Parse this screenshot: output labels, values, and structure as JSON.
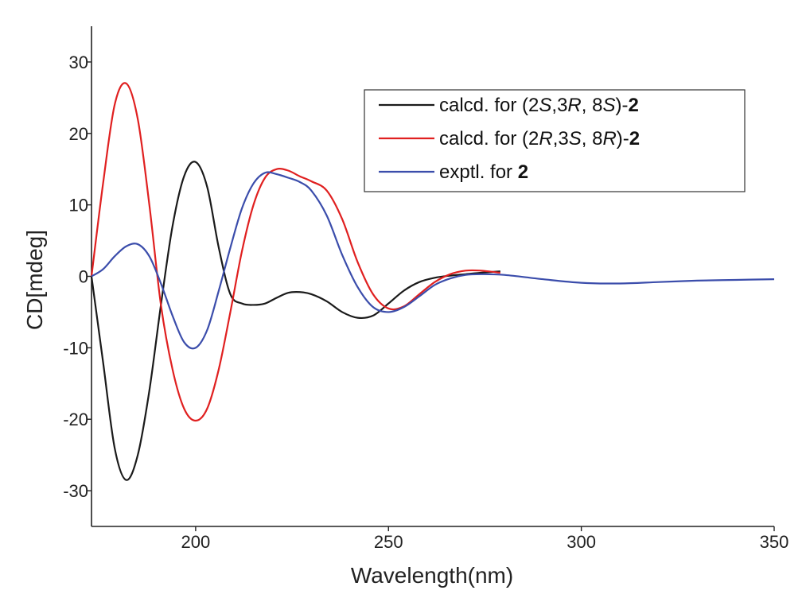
{
  "chart_data": {
    "type": "line",
    "xlabel": "Wavelength(nm)",
    "ylabel": "CD[mdeg]",
    "xlim": [
      173,
      350
    ],
    "ylim": [
      -35,
      35
    ],
    "xticks": [
      200,
      250,
      300,
      350
    ],
    "yticks": [
      30,
      20,
      10,
      0,
      -10,
      -20,
      -30
    ],
    "grid": false,
    "legend_position": "top-right",
    "series": [
      {
        "name": "calcd. for (2S,3R, 8S)-2",
        "legend": [
          {
            "t": "calcd. for (2",
            "s": ""
          },
          {
            "t": "S",
            "s": "ital"
          },
          {
            "t": ",3",
            "s": ""
          },
          {
            "t": "R",
            "s": "ital"
          },
          {
            "t": ", 8",
            "s": ""
          },
          {
            "t": "S",
            "s": "ital"
          },
          {
            "t": ")-",
            "s": ""
          },
          {
            "t": "2",
            "s": "bold"
          }
        ],
        "color": "#1a1a1a",
        "x": [
          173,
          176,
          179,
          182,
          185,
          188,
          191,
          194,
          197,
          200,
          203,
          206,
          209,
          212,
          215,
          218,
          221,
          224,
          227,
          230,
          234,
          238,
          242,
          246,
          250,
          254,
          258,
          262,
          266,
          270,
          274,
          279
        ],
        "y": [
          0,
          -12,
          -24,
          -28.5,
          -25,
          -16,
          -4,
          7,
          14,
          16,
          12.5,
          4,
          -2.5,
          -3.8,
          -4,
          -3.8,
          -3,
          -2.3,
          -2.2,
          -2.5,
          -3.5,
          -5,
          -5.8,
          -5.5,
          -3.8,
          -2,
          -0.8,
          -0.2,
          0.1,
          0.3,
          0.5,
          0.7
        ]
      },
      {
        "name": "calcd. for (2R,3S, 8R)-2",
        "legend": [
          {
            "t": "calcd. for (2",
            "s": ""
          },
          {
            "t": "R",
            "s": "ital"
          },
          {
            "t": ",3",
            "s": ""
          },
          {
            "t": "S",
            "s": "ital"
          },
          {
            "t": ", 8",
            "s": ""
          },
          {
            "t": "R",
            "s": "ital"
          },
          {
            "t": ")-",
            "s": ""
          },
          {
            "t": "2",
            "s": "bold"
          }
        ],
        "color": "#e02020",
        "x": [
          173,
          176,
          179,
          182,
          185,
          188,
          191,
          194,
          197,
          200,
          203,
          206,
          209,
          212,
          215,
          218,
          221,
          224,
          227,
          230,
          234,
          238,
          242,
          246,
          250,
          254,
          258,
          262,
          266,
          270,
          274,
          279
        ],
        "y": [
          0,
          13,
          24,
          27,
          22,
          10,
          -4,
          -13,
          -18.5,
          -20.2,
          -18.5,
          -13,
          -5,
          3.5,
          10,
          13.8,
          15,
          14.8,
          14,
          13.3,
          12,
          8,
          2,
          -2.5,
          -4.5,
          -4.2,
          -2.5,
          -0.8,
          0.3,
          0.8,
          0.8,
          0.5
        ]
      },
      {
        "name": "exptl. for 2",
        "legend": [
          {
            "t": "exptl. for ",
            "s": ""
          },
          {
            "t": "2",
            "s": "bold"
          }
        ],
        "color": "#3b4dab",
        "x": [
          173,
          176,
          179,
          182,
          185,
          188,
          191,
          194,
          197,
          200,
          203,
          206,
          209,
          212,
          215,
          218,
          221,
          224,
          227,
          230,
          234,
          238,
          242,
          246,
          250,
          254,
          258,
          262,
          266,
          270,
          274,
          280,
          290,
          300,
          310,
          320,
          330,
          340,
          350
        ],
        "y": [
          0,
          1,
          2.8,
          4.2,
          4.5,
          2.8,
          -1,
          -5.5,
          -9.2,
          -10,
          -7.5,
          -2,
          4,
          9.5,
          13,
          14.5,
          14.3,
          13.8,
          13.2,
          12,
          8.5,
          3,
          -1.5,
          -4.3,
          -5,
          -4.3,
          -2.8,
          -1.2,
          -0.3,
          0.2,
          0.3,
          0.2,
          -0.4,
          -0.9,
          -1,
          -0.8,
          -0.6,
          -0.5,
          -0.4
        ]
      }
    ]
  }
}
